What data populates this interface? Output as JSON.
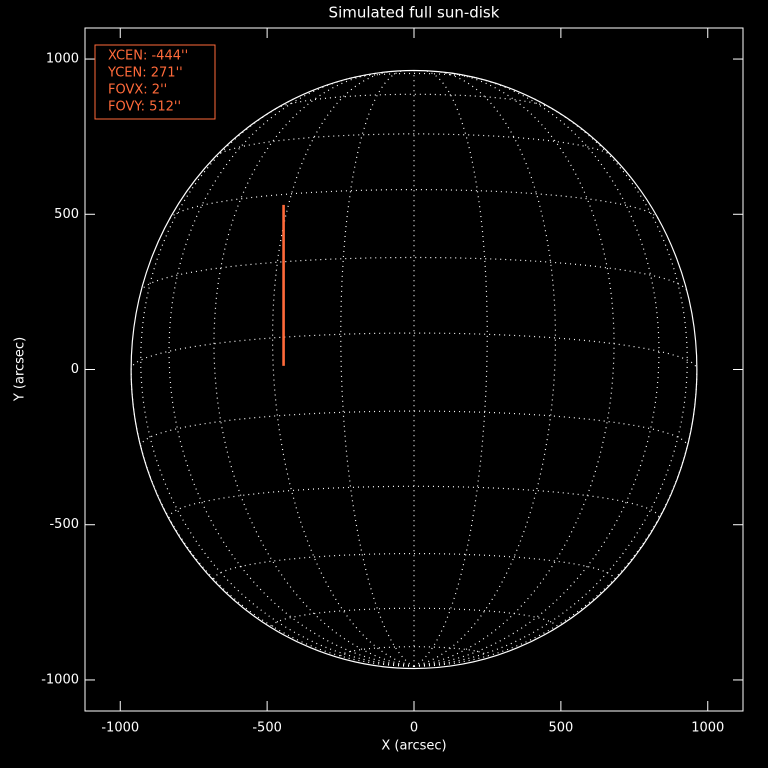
{
  "chart_data": {
    "type": "disk",
    "title": "Simulated full sun-disk",
    "xlabel": "X (arcsec)",
    "ylabel": "Y (arcsec)",
    "xlim": [
      -1120,
      1120
    ],
    "ylim": [
      -1100,
      1100
    ],
    "xticks": [
      -1000,
      -500,
      0,
      500,
      1000
    ],
    "yticks": [
      -1000,
      -500,
      0,
      500,
      1000
    ],
    "solar_radius": 963,
    "b0": -7,
    "disk_color": "#ffffff",
    "fov": {
      "xcen": -444,
      "ycen": 271,
      "fovx": 2,
      "fovy": 512,
      "color": "#ff6a3a"
    },
    "info_box": [
      "XCEN:  -444''",
      "YCEN:  271''",
      "FOVX:  2''",
      "FOVY:  512''"
    ]
  }
}
